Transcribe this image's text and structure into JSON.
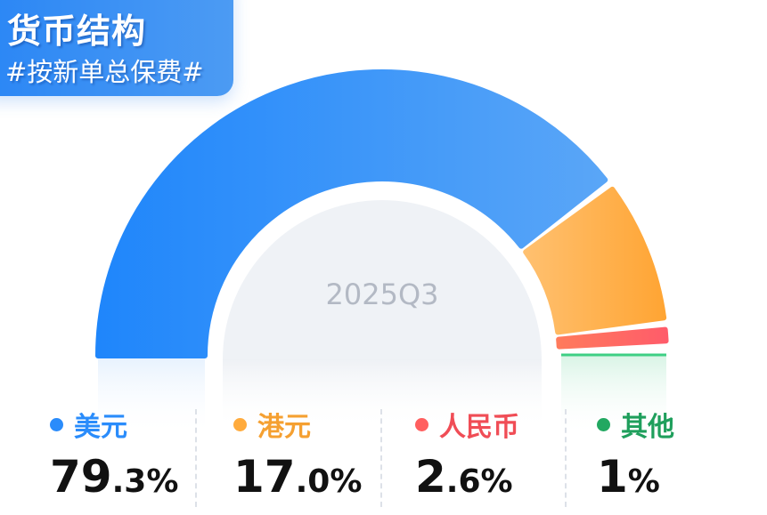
{
  "header": {
    "title": "货币结构",
    "subtitle": "#按新单总保费#"
  },
  "chart_data": {
    "type": "pie",
    "variant": "half-donut",
    "center_label": "2025Q3",
    "categories": [
      "美元",
      "港元",
      "人民币",
      "其他"
    ],
    "values": [
      79.3,
      17.0,
      2.6,
      1
    ],
    "colors": [
      "#2a8cfb",
      "#ffab3d",
      "#ff5f5f",
      "#3ecf84"
    ],
    "display_values": [
      {
        "int": "79",
        "dec": ".3%"
      },
      {
        "int": "17",
        "dec": ".0%"
      },
      {
        "int": "2",
        "dec": ".6%"
      },
      {
        "int": "1",
        "dec": "%"
      }
    ],
    "legend": "bottom"
  }
}
